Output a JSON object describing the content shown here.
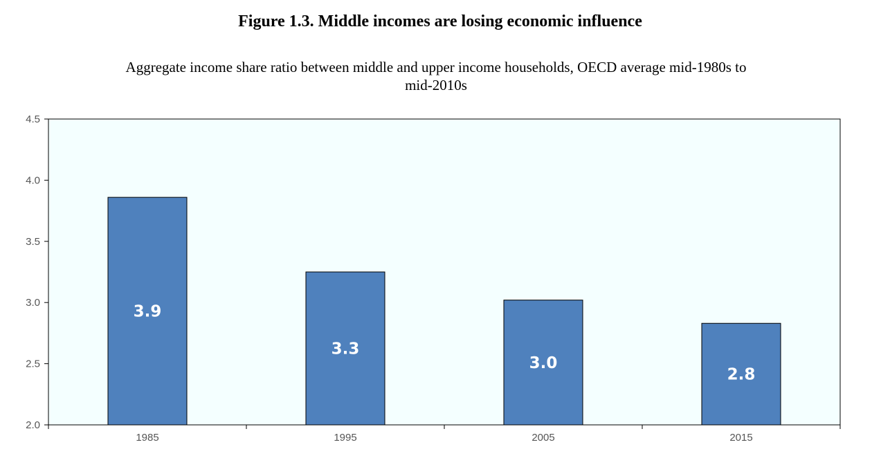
{
  "chart_data": {
    "type": "bar",
    "title": "Figure 1.3. Middle incomes are losing economic influence",
    "subtitle_lines": [
      "Aggregate income share ratio between middle and upper income households, OECD average mid-1980s to",
      "mid-2010s"
    ],
    "categories": [
      "1985",
      "1995",
      "2005",
      "2015"
    ],
    "values": [
      3.86,
      3.25,
      3.02,
      2.83
    ],
    "data_labels": [
      "3.9",
      "3.3",
      "3.0",
      "2.8"
    ],
    "ylim": [
      2.0,
      4.5
    ],
    "yticks": [
      "2.0",
      "2.5",
      "3.0",
      "3.5",
      "4.0",
      "4.5"
    ],
    "xlabel": "",
    "ylabel": "",
    "grid": false,
    "legend": "none",
    "colors": {
      "bar": "#4f81bd",
      "bar_border": "#000000",
      "plot_background": "#f4ffff",
      "label": "#ffffff"
    }
  }
}
